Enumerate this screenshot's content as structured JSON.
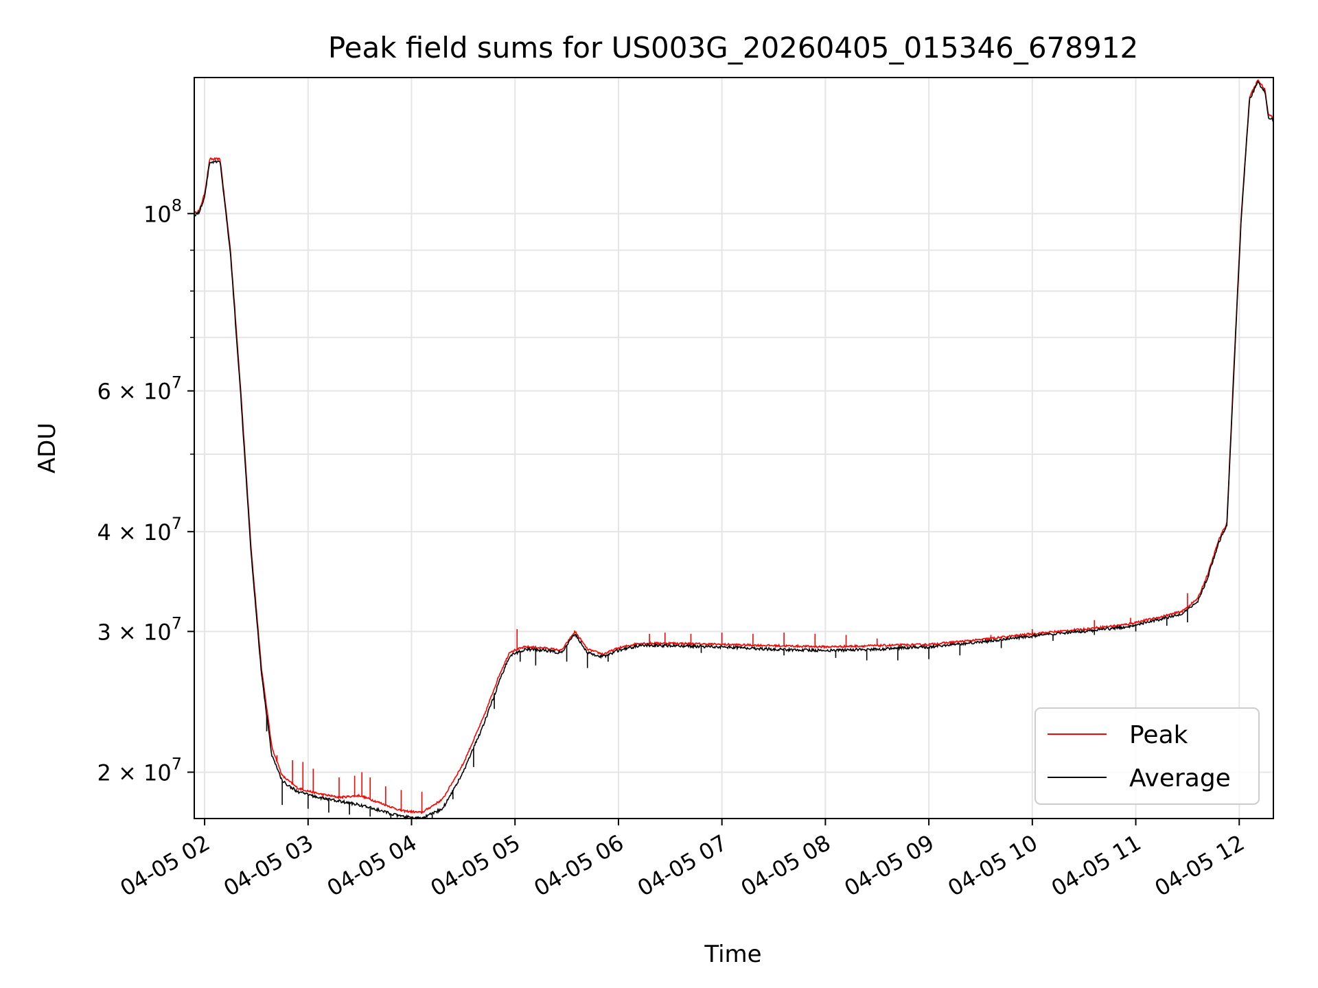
{
  "chart_data": {
    "type": "line",
    "title": "Peak field sums for US003G_20260405_015346_678912",
    "xlabel": "Time",
    "ylabel": "ADU",
    "yscale": "log",
    "ylim": [
      17500000,
      148000000
    ],
    "xlim_hours": [
      1.9,
      12.33
    ],
    "grid": true,
    "legend_position": "lower-right",
    "x_ticks": [
      {
        "h": 2,
        "label": "04-05 02"
      },
      {
        "h": 3,
        "label": "04-05 03"
      },
      {
        "h": 4,
        "label": "04-05 04"
      },
      {
        "h": 5,
        "label": "04-05 05"
      },
      {
        "h": 6,
        "label": "04-05 06"
      },
      {
        "h": 7,
        "label": "04-05 07"
      },
      {
        "h": 8,
        "label": "04-05 08"
      },
      {
        "h": 9,
        "label": "04-05 09"
      },
      {
        "h": 10,
        "label": "04-05 10"
      },
      {
        "h": 11,
        "label": "04-05 11"
      },
      {
        "h": 12,
        "label": "04-05 12"
      }
    ],
    "y_major_ticks": [
      {
        "v": 100000000,
        "base": "10",
        "exp": "8"
      },
      {
        "v": 60000000,
        "base": "6 × 10",
        "exp": "7"
      },
      {
        "v": 40000000,
        "base": "4 × 10",
        "exp": "7"
      },
      {
        "v": 30000000,
        "base": "3 × 10",
        "exp": "7"
      },
      {
        "v": 20000000,
        "base": "2 × 10",
        "exp": "7"
      }
    ],
    "y_minor_ticks": [
      90000000,
      80000000,
      70000000,
      50000000
    ],
    "series": [
      {
        "name": "Peak",
        "color": "#ff0000",
        "points": [
          [
            1.9,
            100000000
          ],
          [
            1.95,
            101000000
          ],
          [
            2.0,
            106000000
          ],
          [
            2.05,
            117000000
          ],
          [
            2.15,
            117000000
          ],
          [
            2.25,
            90000000
          ],
          [
            2.35,
            60000000
          ],
          [
            2.45,
            38000000
          ],
          [
            2.55,
            27000000
          ],
          [
            2.65,
            21500000
          ],
          [
            2.75,
            19800000
          ],
          [
            2.9,
            19100000
          ],
          [
            3.1,
            18800000
          ],
          [
            3.3,
            18600000
          ],
          [
            3.5,
            18700000
          ],
          [
            3.7,
            18300000
          ],
          [
            3.9,
            17900000
          ],
          [
            4.1,
            17800000
          ],
          [
            4.3,
            18500000
          ],
          [
            4.5,
            20500000
          ],
          [
            4.7,
            23500000
          ],
          [
            4.85,
            26500000
          ],
          [
            4.95,
            28300000
          ],
          [
            5.1,
            28700000
          ],
          [
            5.3,
            28600000
          ],
          [
            5.45,
            28400000
          ],
          [
            5.58,
            30000000
          ],
          [
            5.7,
            28500000
          ],
          [
            5.85,
            28100000
          ],
          [
            6.0,
            28600000
          ],
          [
            6.2,
            29000000
          ],
          [
            6.5,
            29000000
          ],
          [
            7.0,
            28900000
          ],
          [
            7.5,
            28800000
          ],
          [
            8.0,
            28700000
          ],
          [
            8.5,
            28800000
          ],
          [
            9.0,
            28900000
          ],
          [
            9.5,
            29300000
          ],
          [
            10.0,
            29800000
          ],
          [
            10.5,
            30200000
          ],
          [
            10.9,
            30600000
          ],
          [
            11.25,
            31300000
          ],
          [
            11.45,
            31800000
          ],
          [
            11.6,
            33000000
          ],
          [
            11.7,
            35500000
          ],
          [
            11.8,
            39000000
          ],
          [
            11.88,
            41000000
          ],
          [
            11.95,
            65000000
          ],
          [
            12.02,
            100000000
          ],
          [
            12.1,
            140000000
          ],
          [
            12.18,
            147000000
          ],
          [
            12.25,
            143000000
          ],
          [
            12.28,
            133000000
          ],
          [
            12.33,
            132000000
          ]
        ],
        "spikes": [
          [
            2.7,
            21000000
          ],
          [
            2.85,
            20700000
          ],
          [
            2.95,
            20600000
          ],
          [
            3.05,
            20200000
          ],
          [
            3.3,
            19700000
          ],
          [
            3.45,
            19800000
          ],
          [
            3.52,
            20000000
          ],
          [
            3.6,
            19700000
          ],
          [
            3.75,
            19200000
          ],
          [
            3.9,
            19000000
          ],
          [
            4.1,
            18900000
          ],
          [
            5.02,
            30200000
          ],
          [
            6.3,
            29800000
          ],
          [
            6.45,
            29900000
          ],
          [
            6.7,
            29800000
          ],
          [
            7.0,
            29900000
          ],
          [
            7.3,
            29800000
          ],
          [
            7.6,
            29900000
          ],
          [
            7.9,
            29800000
          ],
          [
            8.2,
            29700000
          ],
          [
            8.5,
            29400000
          ],
          [
            9.6,
            29700000
          ],
          [
            10.0,
            30200000
          ],
          [
            10.6,
            31000000
          ],
          [
            10.95,
            31200000
          ],
          [
            11.5,
            33500000
          ]
        ]
      },
      {
        "name": "Average",
        "color": "#000000",
        "points": [
          [
            1.9,
            99500000
          ],
          [
            1.95,
            100500000
          ],
          [
            2.0,
            105000000
          ],
          [
            2.05,
            116000000
          ],
          [
            2.15,
            116000000
          ],
          [
            2.25,
            89000000
          ],
          [
            2.35,
            59000000
          ],
          [
            2.45,
            37500000
          ],
          [
            2.55,
            26500000
          ],
          [
            2.65,
            21000000
          ],
          [
            2.75,
            19500000
          ],
          [
            2.9,
            18900000
          ],
          [
            3.1,
            18600000
          ],
          [
            3.3,
            18400000
          ],
          [
            3.5,
            18200000
          ],
          [
            3.7,
            17900000
          ],
          [
            3.9,
            17600000
          ],
          [
            4.1,
            17500000
          ],
          [
            4.3,
            18000000
          ],
          [
            4.5,
            20000000
          ],
          [
            4.7,
            23000000
          ],
          [
            4.85,
            26000000
          ],
          [
            4.95,
            28000000
          ],
          [
            5.1,
            28500000
          ],
          [
            5.3,
            28400000
          ],
          [
            5.45,
            28200000
          ],
          [
            5.58,
            29800000
          ],
          [
            5.7,
            28200000
          ],
          [
            5.85,
            27900000
          ],
          [
            6.0,
            28400000
          ],
          [
            6.2,
            28800000
          ],
          [
            6.5,
            28800000
          ],
          [
            7.0,
            28700000
          ],
          [
            7.5,
            28500000
          ],
          [
            8.0,
            28400000
          ],
          [
            8.5,
            28500000
          ],
          [
            9.0,
            28700000
          ],
          [
            9.5,
            29100000
          ],
          [
            10.0,
            29600000
          ],
          [
            10.5,
            30000000
          ],
          [
            10.9,
            30400000
          ],
          [
            11.25,
            31100000
          ],
          [
            11.45,
            31600000
          ],
          [
            11.6,
            32700000
          ],
          [
            11.7,
            35200000
          ],
          [
            11.8,
            38700000
          ],
          [
            11.88,
            40700000
          ],
          [
            11.95,
            64000000
          ],
          [
            12.02,
            99000000
          ],
          [
            12.1,
            139000000
          ],
          [
            12.18,
            146000000
          ],
          [
            12.25,
            142000000
          ],
          [
            12.28,
            132000000
          ],
          [
            12.33,
            131000000
          ]
        ],
        "dips": [
          [
            2.6,
            22500000
          ],
          [
            2.75,
            18200000
          ],
          [
            3.0,
            18000000
          ],
          [
            3.2,
            17800000
          ],
          [
            3.4,
            17700000
          ],
          [
            3.6,
            17600000
          ],
          [
            3.8,
            17500000
          ],
          [
            4.0,
            17500000
          ],
          [
            4.2,
            17500000
          ],
          [
            4.4,
            18500000
          ],
          [
            4.6,
            20300000
          ],
          [
            4.8,
            24000000
          ],
          [
            5.05,
            27500000
          ],
          [
            5.2,
            27200000
          ],
          [
            5.5,
            27500000
          ],
          [
            5.7,
            27000000
          ],
          [
            5.9,
            27500000
          ],
          [
            6.8,
            28200000
          ],
          [
            7.6,
            28000000
          ],
          [
            8.1,
            27800000
          ],
          [
            8.4,
            27600000
          ],
          [
            8.7,
            27600000
          ],
          [
            9.0,
            27700000
          ],
          [
            9.3,
            28000000
          ],
          [
            9.7,
            28600000
          ],
          [
            10.2,
            29200000
          ],
          [
            10.6,
            29700000
          ],
          [
            11.0,
            30000000
          ],
          [
            11.3,
            30500000
          ],
          [
            11.5,
            30800000
          ]
        ]
      }
    ]
  }
}
